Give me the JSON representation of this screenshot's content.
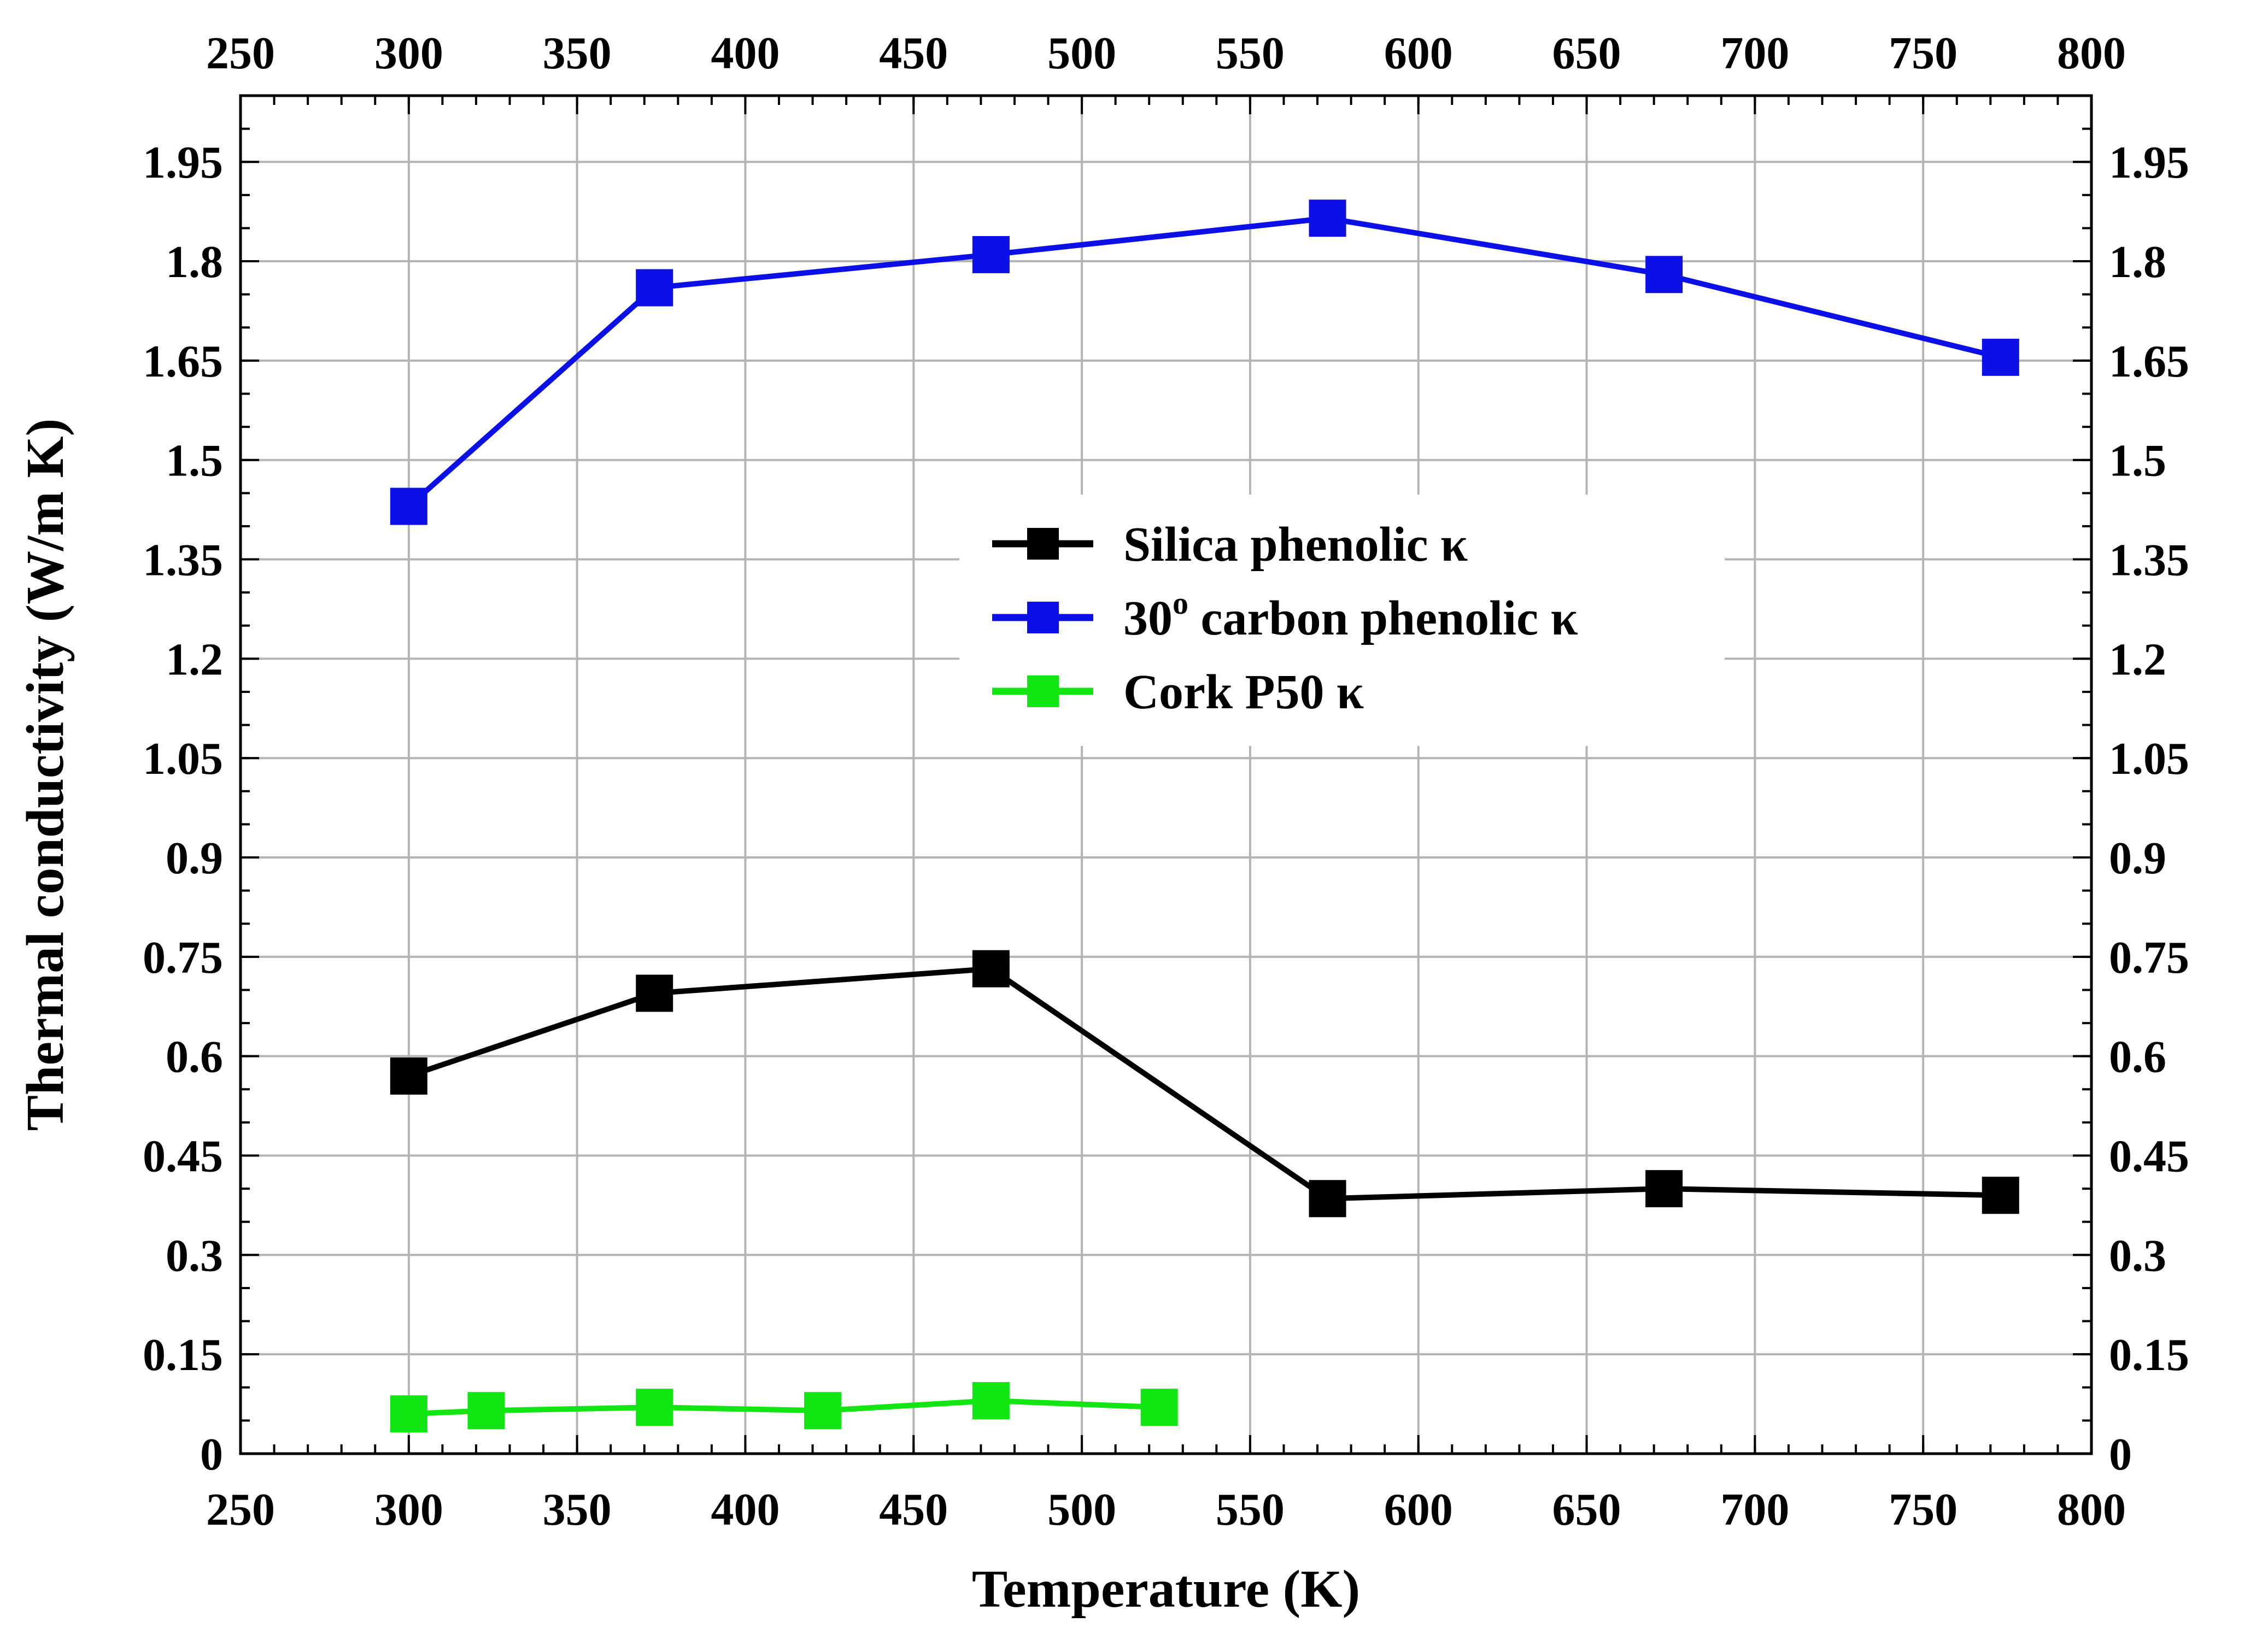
{
  "chart_data": {
    "type": "line",
    "title": "",
    "xlabel": "Temperature (K)",
    "ylabel": "Thermal conductivity (W/m K)",
    "xlim": [
      250,
      800
    ],
    "ylim": [
      0,
      2.05
    ],
    "xticks": [
      250,
      300,
      350,
      400,
      450,
      500,
      550,
      600,
      650,
      700,
      750,
      800
    ],
    "xtick_labels": [
      "250",
      "300",
      "350",
      "400",
      "450",
      "500",
      "550",
      "600",
      "650",
      "700",
      "750",
      "800"
    ],
    "yticks": [
      0,
      0.15,
      0.3,
      0.45,
      0.6,
      0.75,
      0.9,
      1.05,
      1.2,
      1.35,
      1.5,
      1.65,
      1.8,
      1.95
    ],
    "ytick_labels": [
      "0",
      "0.15",
      "0.3",
      "0.45",
      "0.6",
      "0.75",
      "0.9",
      "1.05",
      "1.2",
      "1.35",
      "1.5",
      "1.65",
      "1.8",
      "1.95"
    ],
    "grid": true,
    "legend_position": "center",
    "series": [
      {
        "name": "Silica phenolic κ",
        "legend_main": "Silica phenolic κ",
        "color": "#000000",
        "x": [
          300,
          373,
          473,
          573,
          673,
          773
        ],
        "y": [
          0.57,
          0.695,
          0.732,
          0.385,
          0.4,
          0.39
        ]
      },
      {
        "name": "30o carbon phenolic κ",
        "legend_main": "30",
        "legend_sup": "o",
        "legend_rest": " carbon phenolic κ",
        "color": "#0a10e6",
        "x": [
          300,
          373,
          473,
          573,
          673,
          773
        ],
        "y": [
          1.43,
          1.76,
          1.81,
          1.865,
          1.78,
          1.655
        ]
      },
      {
        "name": "Cork P50 κ",
        "legend_main": "Cork P50 κ",
        "color": "#12e612",
        "x": [
          300,
          323,
          373,
          423,
          473,
          523
        ],
        "y": [
          0.06,
          0.065,
          0.07,
          0.065,
          0.08,
          0.07
        ]
      }
    ]
  }
}
